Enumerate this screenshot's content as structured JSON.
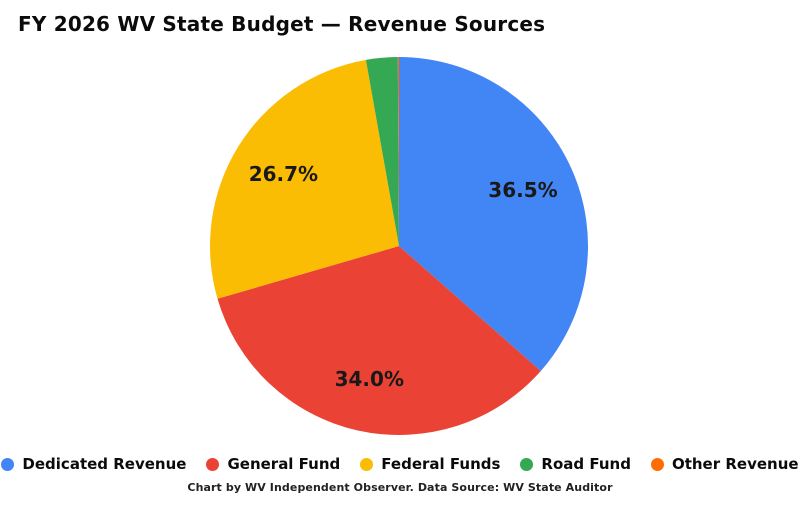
{
  "title": "FY 2026 WV State Budget — Revenue Sources",
  "footer": "Chart by WV Independent Observer. Data Source: WV State Auditor",
  "chart_data": {
    "type": "pie",
    "title": "FY 2026 WV State Budget — Revenue Sources",
    "start_angle": "top (12 o'clock)",
    "direction": "clockwise",
    "legend_position": "bottom",
    "background_color": "#ffffff",
    "label_color": "#191919",
    "slices": [
      {
        "label": "Dedicated Revenue",
        "value": 36.5,
        "display": "36.5%",
        "color": "#4285F4"
      },
      {
        "label": "General Fund",
        "value": 34.0,
        "display": "34.0%",
        "color": "#EA4335"
      },
      {
        "label": "Federal Funds",
        "value": 26.7,
        "display": "26.7%",
        "color": "#FBBC04"
      },
      {
        "label": "Road Fund",
        "value": 2.7,
        "display": "",
        "color": "#34A853"
      },
      {
        "label": "Other Revenue",
        "value": 0.1,
        "display": "",
        "color": "#FF6D01"
      }
    ]
  }
}
